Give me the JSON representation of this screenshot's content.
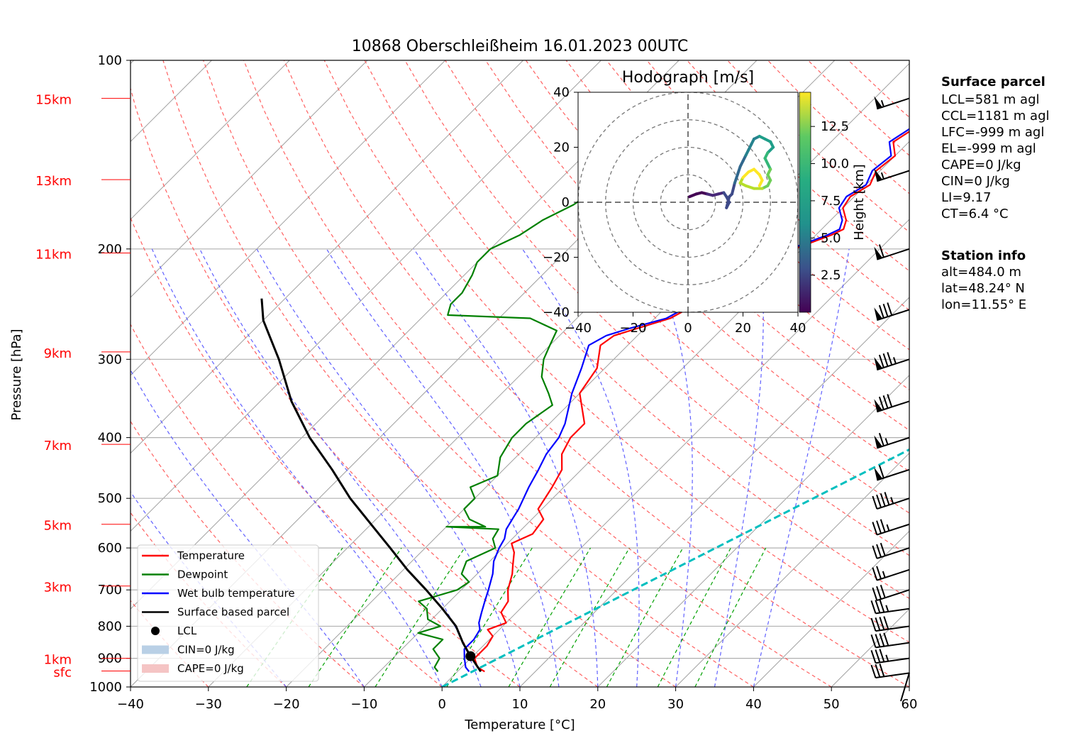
{
  "title": "10868 Oberschleißheim 16.01.2023 00UTC",
  "chart_data": [
    {
      "type": "line",
      "subtype": "skew-T log-P",
      "xlabel": "Temperature [°C]",
      "ylabel": "Pressure [hPa]",
      "xlim": [
        -40,
        60
      ],
      "ylim": [
        1000,
        100
      ],
      "y_scale": "log",
      "x_ticks": [
        "−40",
        "−30",
        "−20",
        "−10",
        "0",
        "10",
        "20",
        "30",
        "40",
        "50",
        "60"
      ],
      "y_ticks": [
        "100",
        "200",
        "300",
        "400",
        "500",
        "600",
        "700",
        "800",
        "900",
        "1000"
      ],
      "height_labels": [
        {
          "p": 943,
          "label": "sfc"
        },
        {
          "p": 900,
          "label": "1km"
        },
        {
          "p": 550,
          "label": "5km"
        },
        {
          "p": 690,
          "label": "3km"
        },
        {
          "p": 410,
          "label": "7km"
        },
        {
          "p": 292,
          "label": "9km"
        },
        {
          "p": 203,
          "label": "11km"
        },
        {
          "p": 155,
          "label": "13km"
        },
        {
          "p": 115,
          "label": "15km"
        }
      ],
      "grid": true,
      "series": [
        {
          "name": "Temperature",
          "color": "#ff0000",
          "points": [
            [
              3.5,
              945
            ],
            [
              2,
              930
            ],
            [
              0.5,
              900
            ],
            [
              0.5,
              860
            ],
            [
              0,
              830
            ],
            [
              -1.5,
              810
            ],
            [
              0,
              790
            ],
            [
              -2,
              760
            ],
            [
              -2.5,
              730
            ],
            [
              -4,
              700
            ],
            [
              -5.5,
              660
            ],
            [
              -6.5,
              640
            ],
            [
              -8,
              610
            ],
            [
              -9.5,
              590
            ],
            [
              -8,
              570
            ],
            [
              -8.5,
              540
            ],
            [
              -10.5,
              520
            ],
            [
              -11.5,
              480
            ],
            [
              -12.5,
              450
            ],
            [
              -14.5,
              425
            ],
            [
              -15.5,
              400
            ],
            [
              -15.5,
              380
            ],
            [
              -20,
              340
            ],
            [
              -21,
              310
            ],
            [
              -23.5,
              285
            ],
            [
              -23,
              275
            ],
            [
              -21,
              268
            ],
            [
              -18,
              258
            ],
            [
              -16.5,
              245
            ],
            [
              -14,
              233
            ],
            [
              -12,
              225
            ],
            [
              -11.5,
              210
            ],
            [
              -11,
              200
            ],
            [
              -8,
              190
            ],
            [
              -7.2,
              186
            ],
            [
              -8,
              180
            ],
            [
              -10,
              172
            ],
            [
              -10.5,
              165
            ],
            [
              -9.5,
              158
            ],
            [
              -10.5,
              150
            ],
            [
              -10,
              142
            ],
            [
              -12,
              135
            ],
            [
              -11,
              128
            ],
            [
              -11.5,
              123
            ],
            [
              -10,
              118
            ],
            [
              -11,
              114
            ],
            [
              -9,
              112
            ],
            [
              -9.5,
              108
            ],
            [
              -9.7,
              105
            ]
          ]
        },
        {
          "name": "Dewpoint",
          "color": "#008000",
          "points": [
            [
              -2.5,
              945
            ],
            [
              -3.5,
              930
            ],
            [
              -4,
              900
            ],
            [
              -6,
              870
            ],
            [
              -6,
              840
            ],
            [
              -10,
              820
            ],
            [
              -8,
              800
            ],
            [
              -10.5,
              780
            ],
            [
              -12,
              750
            ],
            [
              -14,
              730
            ],
            [
              -10.5,
              700
            ],
            [
              -10,
              680
            ],
            [
              -12,
              660
            ],
            [
              -13,
              630
            ],
            [
              -11,
              600
            ],
            [
              -12.5,
              580
            ],
            [
              -13,
              560
            ],
            [
              -20,
              555
            ],
            [
              -15,
              555
            ],
            [
              -18,
              540
            ],
            [
              -20,
              520
            ],
            [
              -20,
              500
            ],
            [
              -22,
              480
            ],
            [
              -20,
              460
            ],
            [
              -22,
              430
            ],
            [
              -23,
              400
            ],
            [
              -23,
              380
            ],
            [
              -22,
              355
            ],
            [
              -24,
              340
            ],
            [
              -27,
              320
            ],
            [
              -29,
              300
            ],
            [
              -30,
              285
            ],
            [
              -31,
              270
            ],
            [
              -36,
              258
            ],
            [
              -47,
              255
            ],
            [
              -48,
              245
            ],
            [
              -48,
              235
            ],
            [
              -49,
              220
            ],
            [
              -50,
              210
            ],
            [
              -50,
              200
            ],
            [
              -48,
              190
            ],
            [
              -47,
              180
            ],
            [
              -45,
              170
            ],
            [
              -44,
              160
            ],
            [
              -42,
              152
            ],
            [
              -40,
              140
            ],
            [
              -39,
              130
            ],
            [
              -39,
              124
            ],
            [
              -38,
              118
            ],
            [
              -37,
              114
            ]
          ]
        },
        {
          "name": "Wet bulb temperature",
          "color": "#0000ff",
          "points": [
            [
              1.5,
              945
            ],
            [
              0.5,
              930
            ],
            [
              -0.8,
              900
            ],
            [
              -2,
              870
            ],
            [
              -2,
              840
            ],
            [
              -2.5,
              810
            ],
            [
              -3.5,
              790
            ],
            [
              -4.5,
              760
            ],
            [
              -5.5,
              730
            ],
            [
              -6.5,
              700
            ],
            [
              -8,
              660
            ],
            [
              -9.5,
              630
            ],
            [
              -10.5,
              600
            ],
            [
              -11,
              580
            ],
            [
              -12,
              560
            ],
            [
              -12.5,
              540
            ],
            [
              -13,
              520
            ],
            [
              -14.5,
              480
            ],
            [
              -15.5,
              450
            ],
            [
              -16.5,
              425
            ],
            [
              -17,
              400
            ],
            [
              -18,
              380
            ],
            [
              -21,
              340
            ],
            [
              -23,
              310
            ],
            [
              -25,
              285
            ],
            [
              -24,
              275
            ],
            [
              -22,
              268
            ],
            [
              -18.5,
              258
            ],
            [
              -17,
              245
            ],
            [
              -14.5,
              233
            ],
            [
              -12.5,
              225
            ],
            [
              -12,
              210
            ],
            [
              -11.5,
              200
            ],
            [
              -8.5,
              190
            ],
            [
              -7.7,
              186
            ],
            [
              -8.5,
              180
            ],
            [
              -10.5,
              172
            ],
            [
              -11,
              165
            ],
            [
              -10,
              158
            ],
            [
              -11,
              150
            ],
            [
              -10.5,
              142
            ],
            [
              -12.5,
              135
            ],
            [
              -11.5,
              128
            ],
            [
              -12,
              123
            ],
            [
              -10.5,
              118
            ],
            [
              -11.5,
              114
            ],
            [
              -9.5,
              112
            ],
            [
              -10,
              108
            ],
            [
              -10.2,
              105
            ]
          ]
        },
        {
          "name": "Surface based parcel",
          "color": "#000000",
          "points": [
            [
              3,
              945
            ],
            [
              -0.3,
              893
            ],
            [
              -3,
              850
            ],
            [
              -6,
              800
            ],
            [
              -10,
              750
            ],
            [
              -14.5,
              700
            ],
            [
              -19.5,
              650
            ],
            [
              -24.5,
              600
            ],
            [
              -30,
              550
            ],
            [
              -36,
              500
            ],
            [
              -42,
              450
            ],
            [
              -49,
              400
            ],
            [
              -56,
              350
            ],
            [
              -63,
              300
            ],
            [
              -70,
              260
            ],
            [
              -73,
              240
            ]
          ]
        }
      ],
      "lcl_point": {
        "label": "LCL",
        "t": -0.3,
        "p": 893
      },
      "legend": {
        "placement": "lower-left",
        "entries": [
          {
            "label": "Temperature",
            "color": "#ff0000",
            "kind": "line"
          },
          {
            "label": "Dewpoint",
            "color": "#008000",
            "kind": "line"
          },
          {
            "label": "Wet bulb temperature",
            "color": "#0000ff",
            "kind": "line"
          },
          {
            "label": "Surface based parcel",
            "color": "#000000",
            "kind": "line"
          },
          {
            "label": "LCL",
            "color": "#000000",
            "kind": "dot"
          },
          {
            "label": "CIN=0 J/kg",
            "color": "#b9d0e6",
            "kind": "patch"
          },
          {
            "label": "CAPE=0 J/kg",
            "color": "#f5c4c4",
            "kind": "patch"
          }
        ]
      },
      "isotherm_0c": {
        "color": "#00bfbf",
        "from": [
          0,
          1000
        ],
        "to": [
          60,
          170
        ]
      },
      "wind_barbs": [
        {
          "p": 1000,
          "speed_kt": 0
        },
        {
          "p": 950,
          "speed_kt": 30
        },
        {
          "p": 900,
          "speed_kt": 35
        },
        {
          "p": 850,
          "speed_kt": 40
        },
        {
          "p": 800,
          "speed_kt": 40
        },
        {
          "p": 750,
          "speed_kt": 35
        },
        {
          "p": 700,
          "speed_kt": 30
        },
        {
          "p": 650,
          "speed_kt": 25
        },
        {
          "p": 600,
          "speed_kt": 30
        },
        {
          "p": 550,
          "speed_kt": 35
        },
        {
          "p": 500,
          "speed_kt": 45
        },
        {
          "p": 450,
          "speed_kt": 60
        },
        {
          "p": 400,
          "speed_kt": 65
        },
        {
          "p": 350,
          "speed_kt": 80
        },
        {
          "p": 300,
          "speed_kt": 85
        },
        {
          "p": 250,
          "speed_kt": 80
        },
        {
          "p": 200,
          "speed_kt": 60
        },
        {
          "p": 150,
          "speed_kt": 55
        },
        {
          "p": 115,
          "speed_kt": 55
        }
      ]
    },
    {
      "type": "line",
      "subtype": "hodograph",
      "title": "Hodograph [m/s]",
      "xlim": [
        -40,
        40
      ],
      "ylim": [
        -40,
        40
      ],
      "x_ticks": [
        "−40",
        "−20",
        "0",
        "20",
        "40"
      ],
      "y_ticks": [
        "40",
        "20",
        "0",
        "−20",
        "−40"
      ],
      "rings": [
        10,
        20,
        30,
        40
      ],
      "colorbar": {
        "label": "Height [km]",
        "ticks": [
          "2.5",
          "5.0",
          "7.5",
          "10.0",
          "12.5"
        ],
        "range": [
          0,
          14.8
        ],
        "colormap": "viridis"
      },
      "points": [
        [
          0.5,
          2,
          0.2
        ],
        [
          3,
          3,
          0.8
        ],
        [
          5,
          3.5,
          1.3
        ],
        [
          7,
          3,
          1.8
        ],
        [
          9,
          2.5,
          2.2
        ],
        [
          11,
          3,
          2.6
        ],
        [
          13,
          3.5,
          3
        ],
        [
          14,
          2,
          3.3
        ],
        [
          15,
          0,
          3.6
        ],
        [
          14,
          -2,
          3.8
        ],
        [
          15,
          2,
          4
        ],
        [
          16,
          3,
          4.3
        ],
        [
          17,
          7,
          4.7
        ],
        [
          18,
          10,
          5.1
        ],
        [
          19,
          13,
          5.5
        ],
        [
          20,
          15,
          5.8
        ],
        [
          21,
          17,
          6.1
        ],
        [
          22,
          19,
          6.4
        ],
        [
          23,
          21,
          6.8
        ],
        [
          24,
          23,
          7.2
        ],
        [
          26,
          24,
          7.6
        ],
        [
          28,
          23,
          8
        ],
        [
          30,
          22,
          8.4
        ],
        [
          31,
          20,
          8.8
        ],
        [
          29,
          18,
          9.2
        ],
        [
          28,
          16,
          9.6
        ],
        [
          29,
          14,
          10
        ],
        [
          30,
          12,
          10.4
        ],
        [
          29,
          10,
          10.8
        ],
        [
          30,
          8,
          11.2
        ],
        [
          29,
          6,
          11.6
        ],
        [
          27,
          5,
          12
        ],
        [
          24,
          5,
          12.4
        ],
        [
          21,
          6,
          12.8
        ],
        [
          19,
          7,
          13.1
        ],
        [
          20,
          9,
          13.4
        ],
        [
          22,
          11,
          13.7
        ],
        [
          24,
          12,
          14
        ],
        [
          26,
          10,
          14.3
        ],
        [
          27,
          8,
          14.6
        ],
        [
          26,
          6,
          14.8
        ]
      ]
    }
  ],
  "surface_parcel": {
    "heading": "Surface parcel",
    "lines": [
      "LCL=581 m agl",
      "CCL=1181 m agl",
      "LFC=-999 m agl",
      "EL=-999 m agl",
      "CAPE=0 J/kg",
      "CIN=0 J/kg",
      "LI=9.17",
      "CT=6.4 °C"
    ]
  },
  "station_info": {
    "heading": "Station info",
    "lines": [
      "alt=484.0 m",
      "lat=48.24° N",
      "lon=11.55° E"
    ]
  }
}
